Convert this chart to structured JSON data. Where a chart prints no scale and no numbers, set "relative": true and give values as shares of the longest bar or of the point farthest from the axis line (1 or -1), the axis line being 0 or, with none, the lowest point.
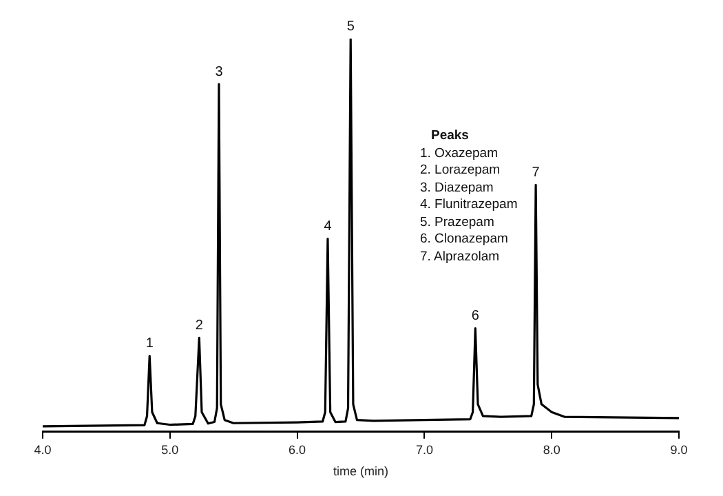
{
  "chart_data": {
    "type": "line",
    "relative": true,
    "xlabel": "time (min)",
    "legend_title": "Peaks",
    "xlim": [
      4,
      9
    ],
    "xticks": [
      {
        "value": 4,
        "label": "4.0"
      },
      {
        "value": 5,
        "label": "5.0"
      },
      {
        "value": 6,
        "label": "6.0"
      },
      {
        "value": 7,
        "label": "7.0"
      },
      {
        "value": 8,
        "label": "8.0"
      },
      {
        "value": 9,
        "label": "9.0"
      }
    ],
    "grid": false,
    "series": [
      {
        "color": "#000000",
        "x": [
          4.0,
          4.8,
          4.82,
          4.84,
          4.86,
          4.9,
          5.0,
          5.18,
          5.2,
          5.23,
          5.25,
          5.3,
          5.35,
          5.37,
          5.385,
          5.4,
          5.43,
          5.5,
          6.0,
          6.2,
          6.22,
          6.24,
          6.26,
          6.3,
          6.38,
          6.4,
          6.42,
          6.44,
          6.47,
          6.6,
          7.0,
          7.36,
          7.38,
          7.4,
          7.42,
          7.46,
          7.6,
          7.84,
          7.86,
          7.875,
          7.89,
          7.92,
          8.0,
          8.1,
          9.0
        ],
        "values": [
          0.014,
          0.017,
          0.04,
          0.193,
          0.05,
          0.022,
          0.018,
          0.02,
          0.04,
          0.239,
          0.05,
          0.021,
          0.025,
          0.06,
          0.884,
          0.07,
          0.03,
          0.022,
          0.024,
          0.026,
          0.05,
          0.491,
          0.05,
          0.025,
          0.026,
          0.06,
          1,
          0.07,
          0.03,
          0.028,
          0.03,
          0.032,
          0.05,
          0.263,
          0.07,
          0.04,
          0.038,
          0.04,
          0.07,
          0.628,
          0.12,
          0.07,
          0.05,
          0.038,
          0.035
        ]
      }
    ],
    "annotations": [
      {
        "text": "1",
        "x": 4.84,
        "y": 0.193
      },
      {
        "text": "2",
        "x": 5.23,
        "y": 0.239
      },
      {
        "text": "3",
        "x": 5.385,
        "y": 0.884
      },
      {
        "text": "4",
        "x": 6.24,
        "y": 0.491
      },
      {
        "text": "5",
        "x": 6.42,
        "y": 1
      },
      {
        "text": "6",
        "x": 7.4,
        "y": 0.263
      },
      {
        "text": "7",
        "x": 7.875,
        "y": 0.628
      },
      "1. Oxazepam",
      "2. Lorazepam",
      "3. Diazepam",
      "4. Flunitrazepam",
      "5. Prazepam",
      "6. Clonazepam",
      "7. Alprazolam"
    ]
  }
}
